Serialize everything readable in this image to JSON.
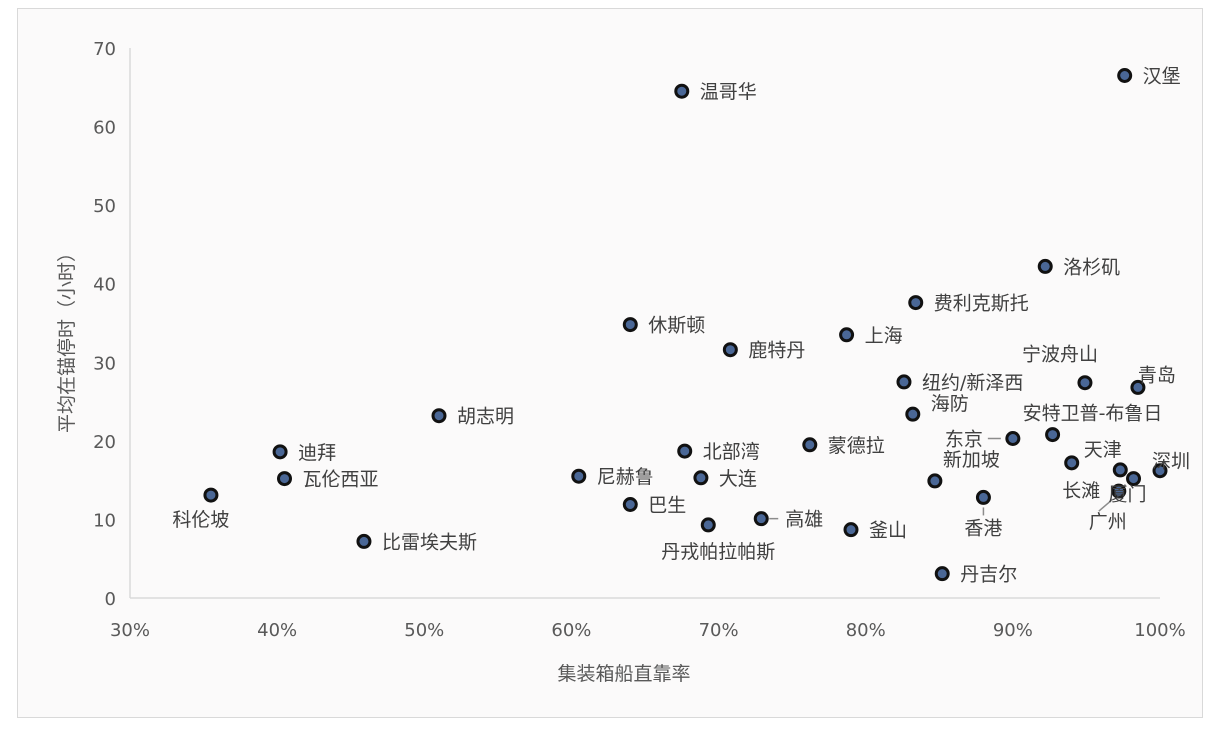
{
  "chart_data": {
    "type": "scatter",
    "xlabel": "集装箱船直靠率",
    "ylabel": "平均在锚停时（小时）",
    "xlim": [
      0.3,
      1.0
    ],
    "ylim": [
      0,
      70
    ],
    "x_ticks": [
      "30%",
      "40%",
      "50%",
      "60%",
      "70%",
      "80%",
      "90%",
      "100%"
    ],
    "y_ticks": [
      "0",
      "10",
      "20",
      "30",
      "40",
      "50",
      "60",
      "70"
    ],
    "grid": false,
    "legend": "none",
    "marker_color": "#4a6796",
    "points": [
      {
        "label": "汉堡",
        "x": 0.976,
        "y": 66.5
      },
      {
        "label": "温哥华",
        "x": 0.675,
        "y": 64.5
      },
      {
        "label": "洛杉矶",
        "x": 0.922,
        "y": 42.2
      },
      {
        "label": "费利克斯托",
        "x": 0.834,
        "y": 37.6
      },
      {
        "label": "休斯顿",
        "x": 0.64,
        "y": 34.8
      },
      {
        "label": "上海",
        "x": 0.787,
        "y": 33.5
      },
      {
        "label": "鹿特丹",
        "x": 0.708,
        "y": 31.6
      },
      {
        "label": "纽约/新泽西",
        "x": 0.826,
        "y": 27.5
      },
      {
        "label": "宁波舟山",
        "x": 0.949,
        "y": 27.4
      },
      {
        "label": "青岛",
        "x": 0.985,
        "y": 26.8
      },
      {
        "label": "胡志明",
        "x": 0.51,
        "y": 23.2
      },
      {
        "label": "海防",
        "x": 0.832,
        "y": 23.4
      },
      {
        "label": "安特卫普-布鲁日",
        "x": 0.927,
        "y": 20.8
      },
      {
        "label": "东京",
        "x": 0.9,
        "y": 20.3
      },
      {
        "label": "蒙德拉",
        "x": 0.762,
        "y": 19.5
      },
      {
        "label": "北部湾",
        "x": 0.677,
        "y": 18.7
      },
      {
        "label": "迪拜",
        "x": 0.402,
        "y": 18.6
      },
      {
        "label": "天津",
        "x": 0.94,
        "y": 17.2
      },
      {
        "label": "长滩",
        "x": 0.973,
        "y": 16.3
      },
      {
        "label": "深圳",
        "x": 1.0,
        "y": 16.2
      },
      {
        "label": "厦门",
        "x": 0.982,
        "y": 15.2
      },
      {
        "label": "尼赫鲁",
        "x": 0.605,
        "y": 15.5
      },
      {
        "label": "大连",
        "x": 0.688,
        "y": 15.3
      },
      {
        "label": "瓦伦西亚",
        "x": 0.405,
        "y": 15.2
      },
      {
        "label": "新加坡",
        "x": 0.847,
        "y": 14.9
      },
      {
        "label": "广州",
        "x": 0.972,
        "y": 13.6
      },
      {
        "label": "科伦坡",
        "x": 0.355,
        "y": 13.1
      },
      {
        "label": "香港",
        "x": 0.88,
        "y": 12.8
      },
      {
        "label": "巴生",
        "x": 0.64,
        "y": 11.9
      },
      {
        "label": "高雄",
        "x": 0.729,
        "y": 10.1
      },
      {
        "label": "丹戎帕拉帕斯",
        "x": 0.693,
        "y": 9.3
      },
      {
        "label": "釜山",
        "x": 0.79,
        "y": 8.7
      },
      {
        "label": "比雷埃夫斯",
        "x": 0.459,
        "y": 7.2
      },
      {
        "label": "丹吉尔",
        "x": 0.852,
        "y": 3.1
      }
    ]
  }
}
